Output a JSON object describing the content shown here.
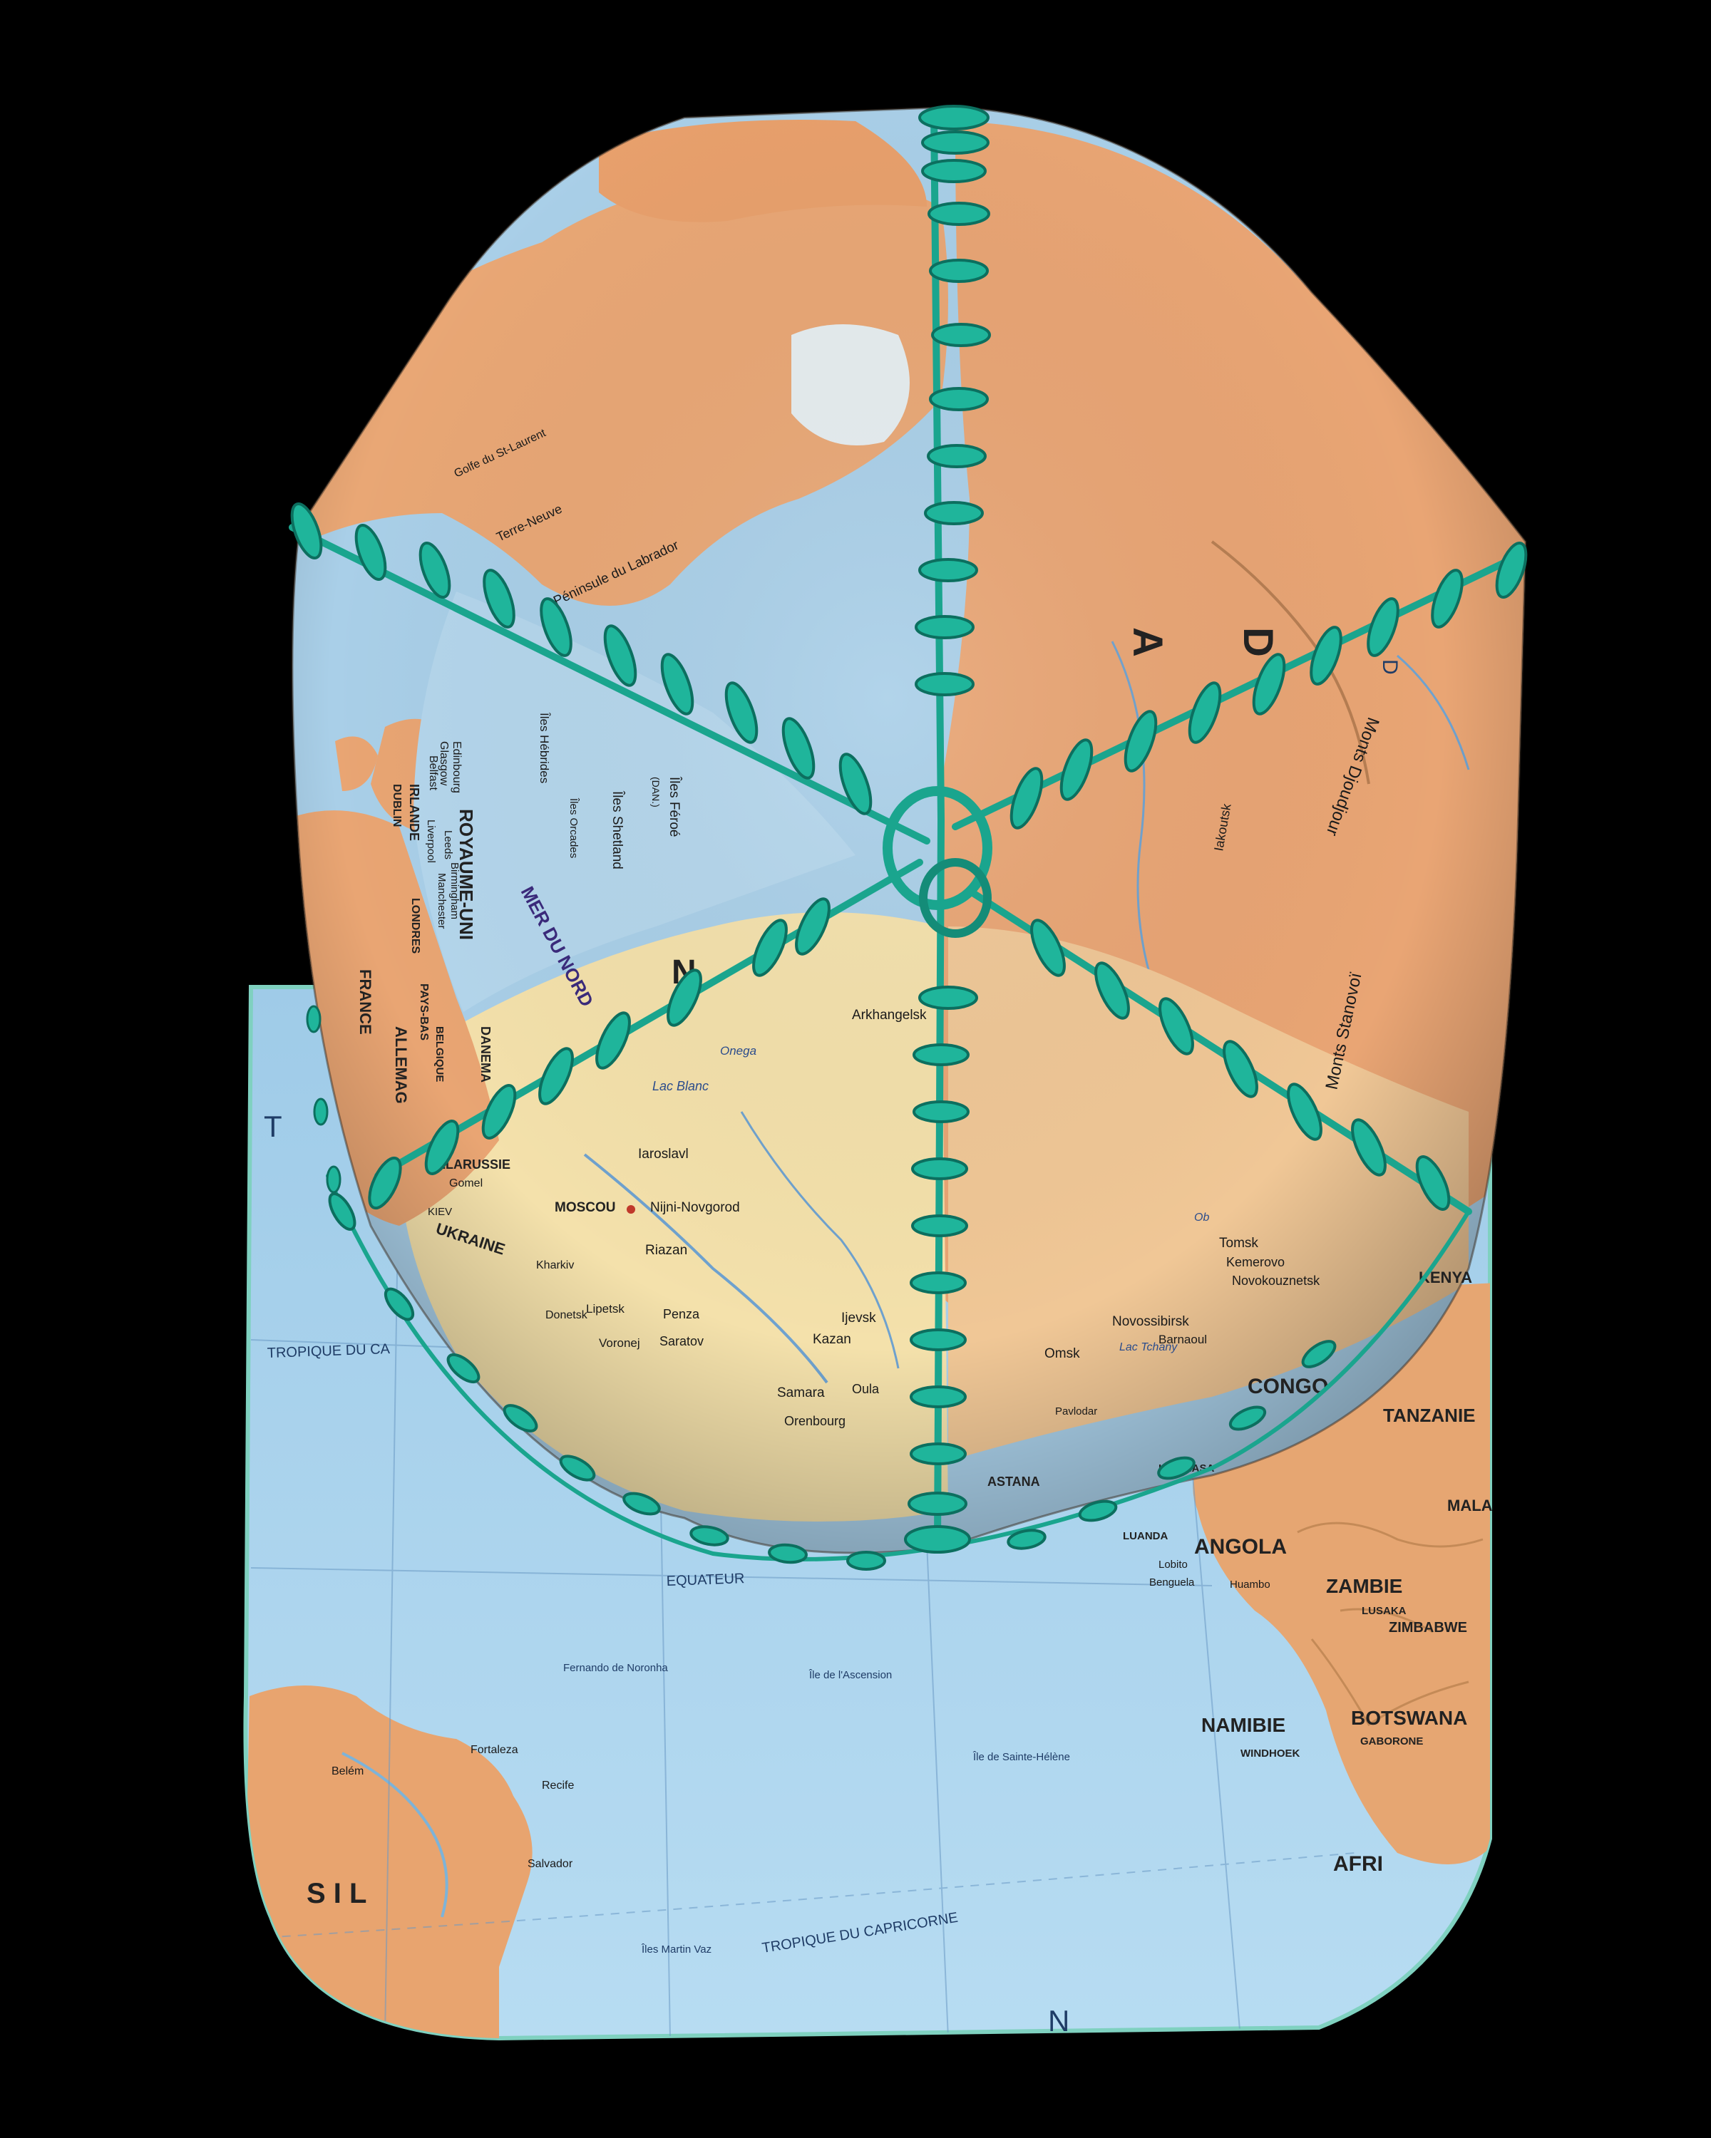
{
  "scene": {
    "subject": "",
    "background_color": "#000000",
    "colors": {
      "ocean": "#a9d3ee",
      "ocean_deep": "#8fc2e6",
      "land_orange": "#e9a775",
      "land_light": "#f0c99a",
      "land_pale": "#f4e3b2",
      "ice": "#e8eef0",
      "lacing": "#1aa58e",
      "lacing_dark": "#0c6f5f",
      "brim_edge": "#7fd1c0"
    }
  },
  "map_labels": {
    "royaume_uni": "ROYAUME-UNI",
    "irlande": "IRLANDE",
    "dublin": "DUBLIN",
    "belfast": "Belfast",
    "glasgow": "Glasgow",
    "edinbourg": "Edinbourg",
    "liverpool": "Liverpool",
    "leeds": "Leeds",
    "manchester": "Manchester",
    "birmingham": "Birmingham",
    "londres": "LONDRES",
    "pays_bas": "PAYS-BAS",
    "belgique": "BELGIQUE",
    "allemagne": "ALLEMAG",
    "danemark": "DANEMA",
    "france": "FRANCE",
    "mer_du_nord": "MER DU NORD",
    "iles_hebrides": "Îles Hébrides",
    "iles_orcades": "Îles Orcades",
    "iles_shetland": "Îles Shetland",
    "iles_feroe": "Îles Féroé",
    "dan": "(DAN.)",
    "terre_neuve": "Terre-Neuve",
    "peninsule_labrador": "Péninsule du Labrador",
    "golfe_st_laurent": "Golfe du St-Laurent",
    "arkhangelsk": "Arkhangelsk",
    "lac_blanc": "Lac Blanc",
    "onega": "Onega",
    "iaroslavl": "Iaroslavl",
    "moscou": "MOSCOU",
    "nijni_novgorod": "Nijni-Novgorod",
    "riazan": "Riazan",
    "lipetsk": "Lipetsk",
    "penza": "Penza",
    "saratov": "Saratov",
    "voronej": "Voronej",
    "kazan": "Kazan",
    "ijevsk": "Ijevsk",
    "samara": "Samara",
    "orenbourg": "Orenbourg",
    "oulan": "Oula",
    "bielorussie": "BÉLARUSSIE",
    "gomel": "Gomel",
    "ukraine": "UKRAINE",
    "kiev": "KIEV",
    "kharkiv": "Kharkiv",
    "donetsk": "Donetsk",
    "omsk": "Omsk",
    "novossibirsk": "Novossibirsk",
    "tomsk": "Tomsk",
    "kemerovo": "Kemerovo",
    "novokouznetsk": "Novokouznetsk",
    "barnaoul": "Barnaoul",
    "lac_tchany": "Lac Tchany",
    "astana": "ASTANA",
    "pavlodar": "Pavlodar",
    "iakoutsk": "Iakoutsk",
    "monts_stanovoi": "Monts Stanovoï",
    "monts_djougdjour": "Monts Djoudjour",
    "ob": "Ob",
    "big_letter_a": "A",
    "big_letter_d": "D",
    "big_letter_d2": "D",
    "big_letter_n": "N",
    "tropique_cancer": "TROPIQUE DU CA",
    "equateur": "EQUATEUR",
    "tropique_capricorne": "TROPIQUE DU CAPRICORNE",
    "kenya": "KENYA",
    "congo": "CONGO",
    "tanzanie": "TANZANIE",
    "angola": "ANGOLA",
    "zambie": "ZAMBIE",
    "lusaka": "LUSAKA",
    "zimbabwe": "ZIMBABWE",
    "namibie": "NAMIBIE",
    "botswana": "BOTSWANA",
    "gaborone": "GABORONE",
    "windhoek": "WINDHOEK",
    "luanda": "LUANDA",
    "kinshasa": "KINSHASA",
    "lobito": "Lobito",
    "benguela": "Benguela",
    "huambo": "Huambo",
    "afri": "AFRI",
    "mala": "MALA",
    "fortaleza": "Fortaleza",
    "recife": "Recife",
    "salvador": "Salvador",
    "belem": "Belém",
    "sil": "S I L",
    "ile_ascension": "Île de l'Ascension",
    "ile_sainte_helene": "Île de Sainte-Hélène",
    "fernando_noronha": "Fernando de Noronha",
    "iles_martin_vaz": "Îles Martin Vaz",
    "ocean_t": "T",
    "ocean_n": "N"
  }
}
